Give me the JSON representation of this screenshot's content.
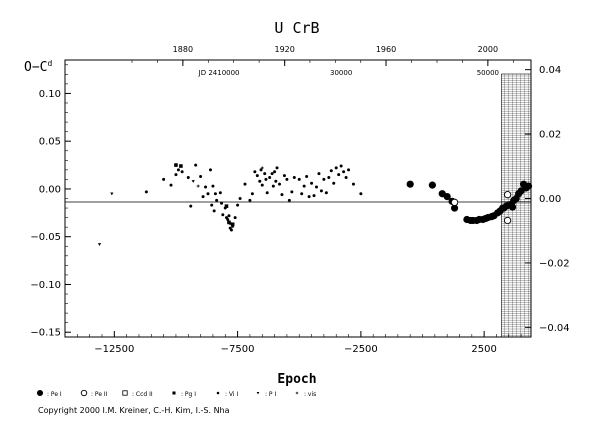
{
  "chart_data": {
    "type": "scatter",
    "title": "U CrB",
    "xlabel": "Epoch",
    "ylabel": "O−C",
    "ylabel_unit": "d",
    "xlim": [
      -14500,
      4400
    ],
    "ylim": [
      -0.155,
      0.135
    ],
    "right_ylim": [
      -0.043,
      0.043
    ],
    "x_ticks": [
      -12500,
      -7500,
      -2500,
      2500
    ],
    "x_tick_labels": [
      "−12500",
      "−7500",
      "−2500",
      "2500"
    ],
    "y_ticks": [
      -0.15,
      -0.1,
      -0.05,
      0.0,
      0.05,
      0.1
    ],
    "y_tick_labels": [
      "−0.15",
      "−0.10",
      "−0.05",
      "0.00",
      "0.05",
      "0.10"
    ],
    "right_ticks": [
      -0.04,
      -0.02,
      0.0,
      0.02,
      0.04
    ],
    "right_tick_labels": [
      "−0.04",
      "−0.02",
      "0.00",
      "0.02",
      "0.04"
    ],
    "top_axis": {
      "year_labels": [
        "1880",
        "1920",
        "1960",
        "2000"
      ],
      "year_ticks_epoch": [
        -9720,
        -5590,
        -1480,
        2650
      ],
      "jd_labels": [
        {
          "text": "JD 2410000",
          "x": -8250
        },
        {
          "text": "30000",
          "x": -3300
        },
        {
          "text": "50000",
          "x": 2650
        }
      ]
    },
    "zero_line": true,
    "grid": false,
    "shaded_region_x": [
      3200,
      4400
    ],
    "series": [
      {
        "name": "Pe I",
        "marker": "circle-filled-large",
        "points": [
          [
            -500,
            0.005
          ],
          [
            400,
            0.004
          ],
          [
            800,
            -0.005
          ],
          [
            1000,
            -0.008
          ],
          [
            1200,
            -0.013
          ],
          [
            1300,
            -0.02
          ],
          [
            1800,
            -0.032
          ],
          [
            1950,
            -0.033
          ],
          [
            2050,
            -0.033
          ],
          [
            2200,
            -0.033
          ],
          [
            2300,
            -0.032
          ],
          [
            2450,
            -0.032
          ],
          [
            2550,
            -0.031
          ],
          [
            2650,
            -0.03
          ],
          [
            2800,
            -0.029
          ],
          [
            2900,
            -0.028
          ],
          [
            3050,
            -0.025
          ],
          [
            3150,
            -0.023
          ],
          [
            3250,
            -0.02
          ],
          [
            3300,
            -0.02
          ],
          [
            3400,
            -0.018
          ],
          [
            3500,
            -0.017
          ],
          [
            3600,
            -0.016
          ],
          [
            3650,
            -0.019
          ],
          [
            3700,
            -0.012
          ],
          [
            3800,
            -0.01
          ],
          [
            3900,
            -0.005
          ],
          [
            4000,
            -0.002
          ],
          [
            4100,
            0.005
          ],
          [
            4200,
            0.001
          ],
          [
            4300,
            0.003
          ],
          [
            4800,
            0.03
          ],
          [
            5300,
            0.044
          ]
        ]
      },
      {
        "name": "Pe II",
        "marker": "circle-open",
        "points": [
          [
            1300,
            -0.014
          ],
          [
            3450,
            -0.033
          ],
          [
            3450,
            -0.006
          ]
        ]
      },
      {
        "name": "Ccd II",
        "marker": "square-open",
        "points": [
          [
            4700,
            0.01
          ]
        ]
      },
      {
        "name": "Pg I",
        "marker": "square-filled",
        "points": [
          [
            -10000,
            0.025
          ],
          [
            -9800,
            0.024
          ],
          [
            -7950,
            -0.018
          ],
          [
            -7850,
            -0.035
          ],
          [
            -7700,
            -0.037
          ]
        ]
      },
      {
        "name": "Vi I",
        "marker": "dot-filled",
        "points": [
          [
            -11200,
            -0.003
          ],
          [
            -10200,
            0.004
          ],
          [
            -10000,
            0.015
          ],
          [
            -9750,
            0.018
          ],
          [
            -9500,
            0.012
          ],
          [
            -9400,
            -0.018
          ],
          [
            -9200,
            0.025
          ],
          [
            -9000,
            0.013
          ],
          [
            -8900,
            -0.008
          ],
          [
            -8800,
            0.002
          ],
          [
            -8700,
            -0.005
          ],
          [
            -8600,
            0.02
          ],
          [
            -8500,
            0.003
          ],
          [
            -8400,
            -0.005
          ],
          [
            -8350,
            -0.012
          ],
          [
            -8200,
            -0.004
          ],
          [
            -8150,
            -0.015
          ],
          [
            -8100,
            -0.027
          ],
          [
            -8000,
            -0.02
          ],
          [
            -7950,
            -0.03
          ],
          [
            -7900,
            -0.032
          ],
          [
            -7800,
            -0.036
          ],
          [
            -7800,
            -0.041
          ],
          [
            -7750,
            -0.043
          ],
          [
            -7700,
            -0.039
          ],
          [
            -7600,
            -0.03
          ],
          [
            -7500,
            -0.017
          ],
          [
            -7400,
            -0.01
          ],
          [
            -7200,
            0.005
          ],
          [
            -7000,
            -0.012
          ],
          [
            -6900,
            -0.005
          ],
          [
            -6800,
            0.018
          ],
          [
            -6700,
            0.014
          ],
          [
            -6600,
            0.008
          ],
          [
            -6550,
            0.02
          ],
          [
            -6500,
            0.004
          ],
          [
            -6400,
            0.016
          ],
          [
            -6350,
            0.01
          ],
          [
            -6300,
            -0.004
          ],
          [
            -6200,
            0.012
          ],
          [
            -6100,
            0.016
          ],
          [
            -6050,
            0.003
          ],
          [
            -6000,
            0.018
          ],
          [
            -5950,
            0.008
          ],
          [
            -5900,
            0.022
          ],
          [
            -5800,
            0.005
          ],
          [
            -5700,
            -0.006
          ],
          [
            -5600,
            0.014
          ],
          [
            -5500,
            0.01
          ],
          [
            -5400,
            -0.012
          ],
          [
            -5300,
            -0.003
          ],
          [
            -5200,
            0.012
          ],
          [
            -5000,
            0.01
          ],
          [
            -4900,
            -0.005
          ],
          [
            -4800,
            0.003
          ],
          [
            -4700,
            0.013
          ],
          [
            -4600,
            -0.008
          ],
          [
            -4500,
            0.006
          ],
          [
            -4400,
            -0.007
          ],
          [
            -4300,
            0.002
          ],
          [
            -4200,
            0.016
          ],
          [
            -4100,
            -0.002
          ],
          [
            -4000,
            0.01
          ],
          [
            -3900,
            -0.004
          ],
          [
            -3800,
            0.012
          ],
          [
            -3700,
            0.019
          ],
          [
            -3600,
            0.006
          ],
          [
            -3500,
            0.022
          ],
          [
            -3400,
            0.015
          ],
          [
            -3300,
            0.024
          ],
          [
            -3200,
            0.018
          ],
          [
            -3100,
            0.012
          ],
          [
            -3000,
            0.02
          ],
          [
            -2800,
            0.005
          ],
          [
            -2500,
            -0.005
          ],
          [
            -10500,
            0.01
          ],
          [
            -9900,
            0.02
          ],
          [
            -8550,
            -0.017
          ],
          [
            -8450,
            -0.023
          ],
          [
            -7850,
            -0.028
          ]
        ]
      },
      {
        "name": "P I",
        "marker": "tri-small",
        "points": [
          [
            -13100,
            -0.058
          ],
          [
            -12600,
            -0.005
          ],
          [
            -9300,
            0.008
          ]
        ]
      },
      {
        "name": "vis",
        "marker": "plus-small",
        "points": [
          [
            -9100,
            0.003
          ],
          [
            -6500,
            0.022
          ]
        ]
      }
    ],
    "legend": {
      "placement": "bottom",
      "entries": [
        {
          "symbol": "circle-filled-large",
          "label": ": Pe I"
        },
        {
          "symbol": "circle-open",
          "label": ": Pe II"
        },
        {
          "symbol": "square-open",
          "label": ": Ccd II"
        },
        {
          "symbol": "square-filled",
          "label": ": Pg I"
        },
        {
          "symbol": "dot-filled",
          "label": ": Vi I"
        },
        {
          "symbol": "tri-small",
          "label": ": P I"
        },
        {
          "symbol": "plus-small",
          "label": ": vis"
        }
      ]
    }
  },
  "copyright": "Copyright 2000 I.M. Kreiner, C.-H. Kim, I.-S. Nha"
}
